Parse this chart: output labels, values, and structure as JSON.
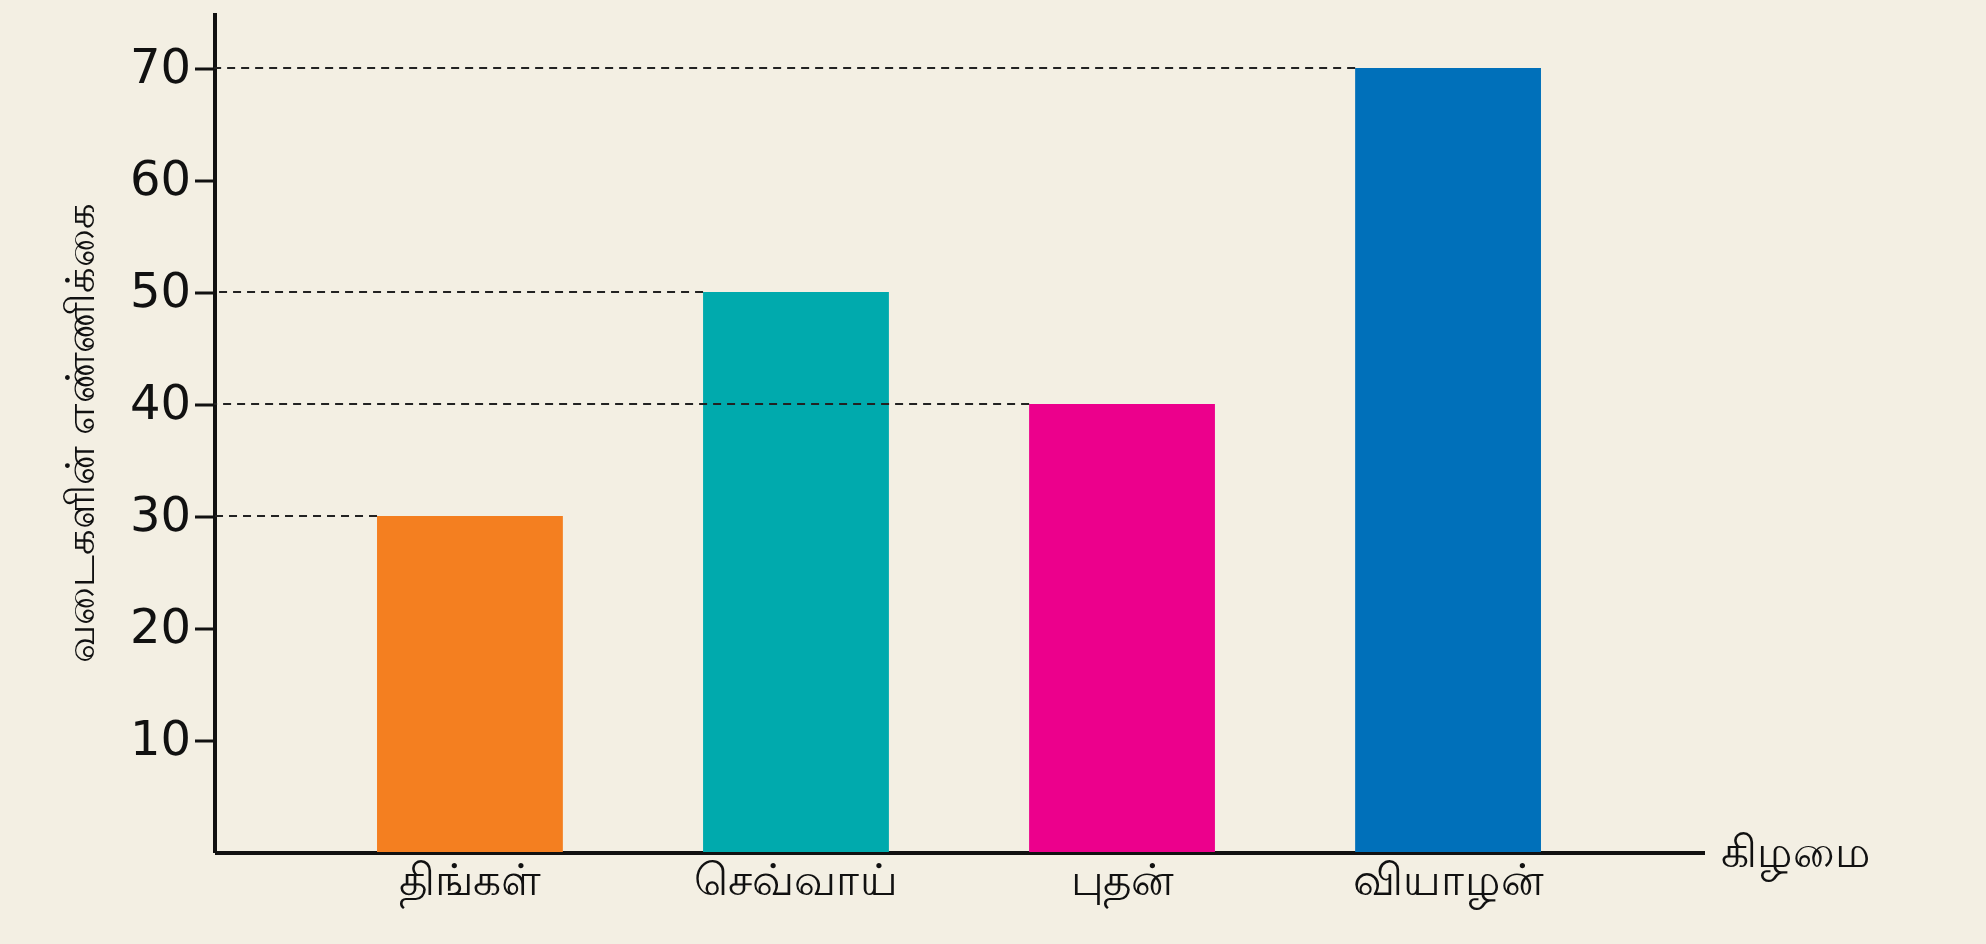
{
  "chart_data": {
    "type": "bar",
    "xlabel": "கிழமை",
    "ylabel": "வடைகளின் எண்ணிக்கை",
    "categories": [
      "திங்கள்",
      "செவ்வாய்",
      "புதன்",
      "வியாழன்"
    ],
    "values": [
      30,
      50,
      40,
      70
    ],
    "colors": [
      "#f47f20",
      "#00aaad",
      "#ec008c",
      "#0070ba"
    ],
    "ylim": [
      0,
      75
    ],
    "yticks": [
      10,
      20,
      30,
      40,
      50,
      60,
      70
    ],
    "grid": false,
    "ref_lines": [
      {
        "axis": "y",
        "value": 30,
        "line_style": "dashed"
      },
      {
        "axis": "y",
        "value": 50,
        "line_style": "dashed"
      },
      {
        "axis": "y",
        "value": 40,
        "line_style": "dashed"
      },
      {
        "axis": "y",
        "value": 70,
        "line_style": "dashed"
      }
    ]
  }
}
